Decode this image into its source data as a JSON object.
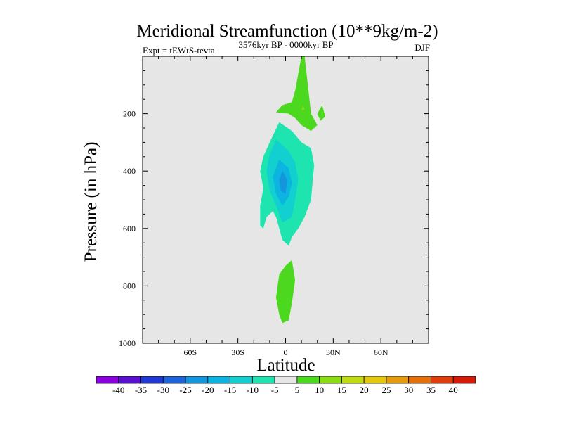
{
  "chart_data": {
    "type": "contour",
    "title": "Meridional Streamfunction (10**9kg/m-2)",
    "left_subtitle": "Expt = tEWtS-tevta",
    "center_subtitle": "3576kyr BP - 0000kyr BP",
    "right_subtitle": "DJF",
    "xlabel": "Latitude",
    "ylabel": "Pressure (in hPa)",
    "xlim": [
      -90,
      90
    ],
    "ylim": [
      0,
      1000
    ],
    "y_reversed": true,
    "x_ticks": [
      {
        "value": -60,
        "label": "60S"
      },
      {
        "value": -30,
        "label": "30S"
      },
      {
        "value": 0,
        "label": "0"
      },
      {
        "value": 30,
        "label": "30N"
      },
      {
        "value": 60,
        "label": "60N"
      }
    ],
    "y_ticks": [
      {
        "value": 200,
        "label": "200"
      },
      {
        "value": 400,
        "label": "400"
      },
      {
        "value": 600,
        "label": "600"
      },
      {
        "value": 800,
        "label": "800"
      },
      {
        "value": 1000,
        "label": "1000"
      }
    ],
    "background_color": "#e6e6e6",
    "colorbar": {
      "labels": [
        "-40",
        "-35",
        "-30",
        "-25",
        "-20",
        "-15",
        "-10",
        "-5",
        "5",
        "10",
        "15",
        "20",
        "25",
        "30",
        "35",
        "40"
      ],
      "colors": [
        "#8a00e0",
        "#5a10d0",
        "#2238d2",
        "#1e64d8",
        "#1496dc",
        "#0cb4e0",
        "#12d0d0",
        "#1ee4b0",
        "#e6e6e6",
        "#4cd81e",
        "#8cdc12",
        "#c0dc0c",
        "#e4c80a",
        "#e49c0a",
        "#e4700c",
        "#e03c0c",
        "#d81808"
      ]
    },
    "regions": [
      {
        "name": "upper-positive-cell",
        "level": 5,
        "color": "#4cd81e",
        "points": [
          [
            12,
            0
          ],
          [
            14,
            100
          ],
          [
            16,
            200
          ],
          [
            18,
            220
          ],
          [
            20,
            240
          ],
          [
            16,
            260
          ],
          [
            10,
            240
          ],
          [
            6,
            215
          ],
          [
            2,
            200
          ],
          [
            -6,
            195
          ],
          [
            -2,
            170
          ],
          [
            4,
            160
          ],
          [
            6,
            120
          ],
          [
            8,
            60
          ],
          [
            10,
            0
          ]
        ]
      },
      {
        "name": "upper-small-cell",
        "level": 5,
        "color": "#4cd81e",
        "points": [
          [
            23,
            170
          ],
          [
            25,
            210
          ],
          [
            22,
            225
          ],
          [
            20,
            200
          ]
        ]
      },
      {
        "name": "upper-inner-cell",
        "level": 10,
        "color": "#8cdc12",
        "points": [
          [
            11,
            170
          ],
          [
            12,
            185
          ],
          [
            10,
            190
          ]
        ]
      },
      {
        "name": "negative-cell-outer",
        "level": -5,
        "color": "#1ee4b0",
        "points": [
          [
            -4,
            230
          ],
          [
            4,
            260
          ],
          [
            10,
            300
          ],
          [
            16,
            320
          ],
          [
            18,
            380
          ],
          [
            17,
            440
          ],
          [
            16,
            500
          ],
          [
            12,
            560
          ],
          [
            8,
            600
          ],
          [
            4,
            630
          ],
          [
            2,
            660
          ],
          [
            -2,
            640
          ],
          [
            -4,
            600
          ],
          [
            -6,
            560
          ],
          [
            -8,
            540
          ],
          [
            -12,
            560
          ],
          [
            -14,
            600
          ],
          [
            -16,
            590
          ],
          [
            -16,
            520
          ],
          [
            -14,
            460
          ],
          [
            -16,
            400
          ],
          [
            -14,
            350
          ],
          [
            -10,
            300
          ]
        ]
      },
      {
        "name": "negative-cell-mid",
        "level": -10,
        "color": "#12d0d0",
        "points": [
          [
            -6,
            290
          ],
          [
            2,
            330
          ],
          [
            6,
            370
          ],
          [
            8,
            430
          ],
          [
            6,
            500
          ],
          [
            4,
            560
          ],
          [
            -2,
            580
          ],
          [
            -6,
            520
          ],
          [
            -10,
            470
          ],
          [
            -12,
            400
          ],
          [
            -10,
            340
          ]
        ]
      },
      {
        "name": "negative-cell-inner",
        "level": -15,
        "color": "#0cb4e0",
        "points": [
          [
            -4,
            360
          ],
          [
            2,
            390
          ],
          [
            4,
            440
          ],
          [
            2,
            490
          ],
          [
            -2,
            520
          ],
          [
            -6,
            480
          ],
          [
            -8,
            420
          ]
        ]
      },
      {
        "name": "negative-cell-core",
        "level": -20,
        "color": "#1496dc",
        "points": [
          [
            -2,
            400
          ],
          [
            1,
            430
          ],
          [
            0,
            480
          ],
          [
            -3,
            470
          ],
          [
            -4,
            430
          ]
        ]
      },
      {
        "name": "lower-positive-cell",
        "level": 5,
        "color": "#4cd81e",
        "points": [
          [
            4,
            710
          ],
          [
            6,
            780
          ],
          [
            4,
            860
          ],
          [
            2,
            920
          ],
          [
            -2,
            930
          ],
          [
            -4,
            900
          ],
          [
            -6,
            840
          ],
          [
            -4,
            760
          ],
          [
            0,
            730
          ]
        ]
      }
    ]
  }
}
